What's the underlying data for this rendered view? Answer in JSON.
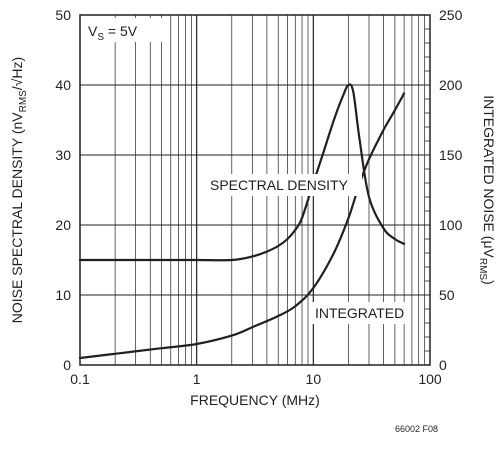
{
  "chart_data": {
    "type": "line",
    "x_scale": "log",
    "xlim": [
      0.1,
      100
    ],
    "ylim_left": [
      0,
      50
    ],
    "ylim_right": [
      0,
      250
    ],
    "grid": true,
    "xlabel": "FREQUENCY (MHz)",
    "ylabel_left": {
      "main": "NOISE SPECTRAL DENSITY (nV",
      "sub": "RMS",
      "post": "/√Hz)"
    },
    "ylabel_right": {
      "main": "INTEGRATED NOISE (μV",
      "sub": "RMS",
      "post": ")"
    },
    "x_ticks": [
      "0.1",
      "1",
      "10",
      "100"
    ],
    "y_ticks_left": [
      "0",
      "10",
      "20",
      "30",
      "40",
      "50"
    ],
    "y_ticks_right": [
      "0",
      "50",
      "100",
      "150",
      "200",
      "250"
    ],
    "condition": {
      "main": "V",
      "sub": "S",
      "post": " = 5V"
    },
    "figure_id": "66002 F08",
    "series": [
      {
        "label": "SPECTRAL DENSITY",
        "axis": "left",
        "x": [
          0.1,
          0.5,
          1,
          2,
          3,
          4,
          5,
          6,
          7,
          8,
          10,
          12,
          15,
          18,
          20,
          22,
          25,
          30,
          40,
          50,
          60
        ],
        "y": [
          15,
          15,
          15,
          15,
          15.5,
          16.2,
          17,
          18,
          19.3,
          21,
          26,
          30,
          35,
          38.5,
          40,
          39,
          32,
          24,
          19.5,
          18,
          17.3
        ]
      },
      {
        "label": "INTEGRATED",
        "axis": "right",
        "x": [
          0.1,
          0.2,
          0.5,
          1,
          2,
          3,
          5,
          7,
          10,
          15,
          20,
          25,
          30,
          40,
          50,
          60
        ],
        "y": [
          5,
          8,
          12,
          15,
          21,
          27,
          35,
          42,
          55,
          80,
          105,
          130,
          147,
          168,
          182,
          194
        ]
      }
    ]
  }
}
